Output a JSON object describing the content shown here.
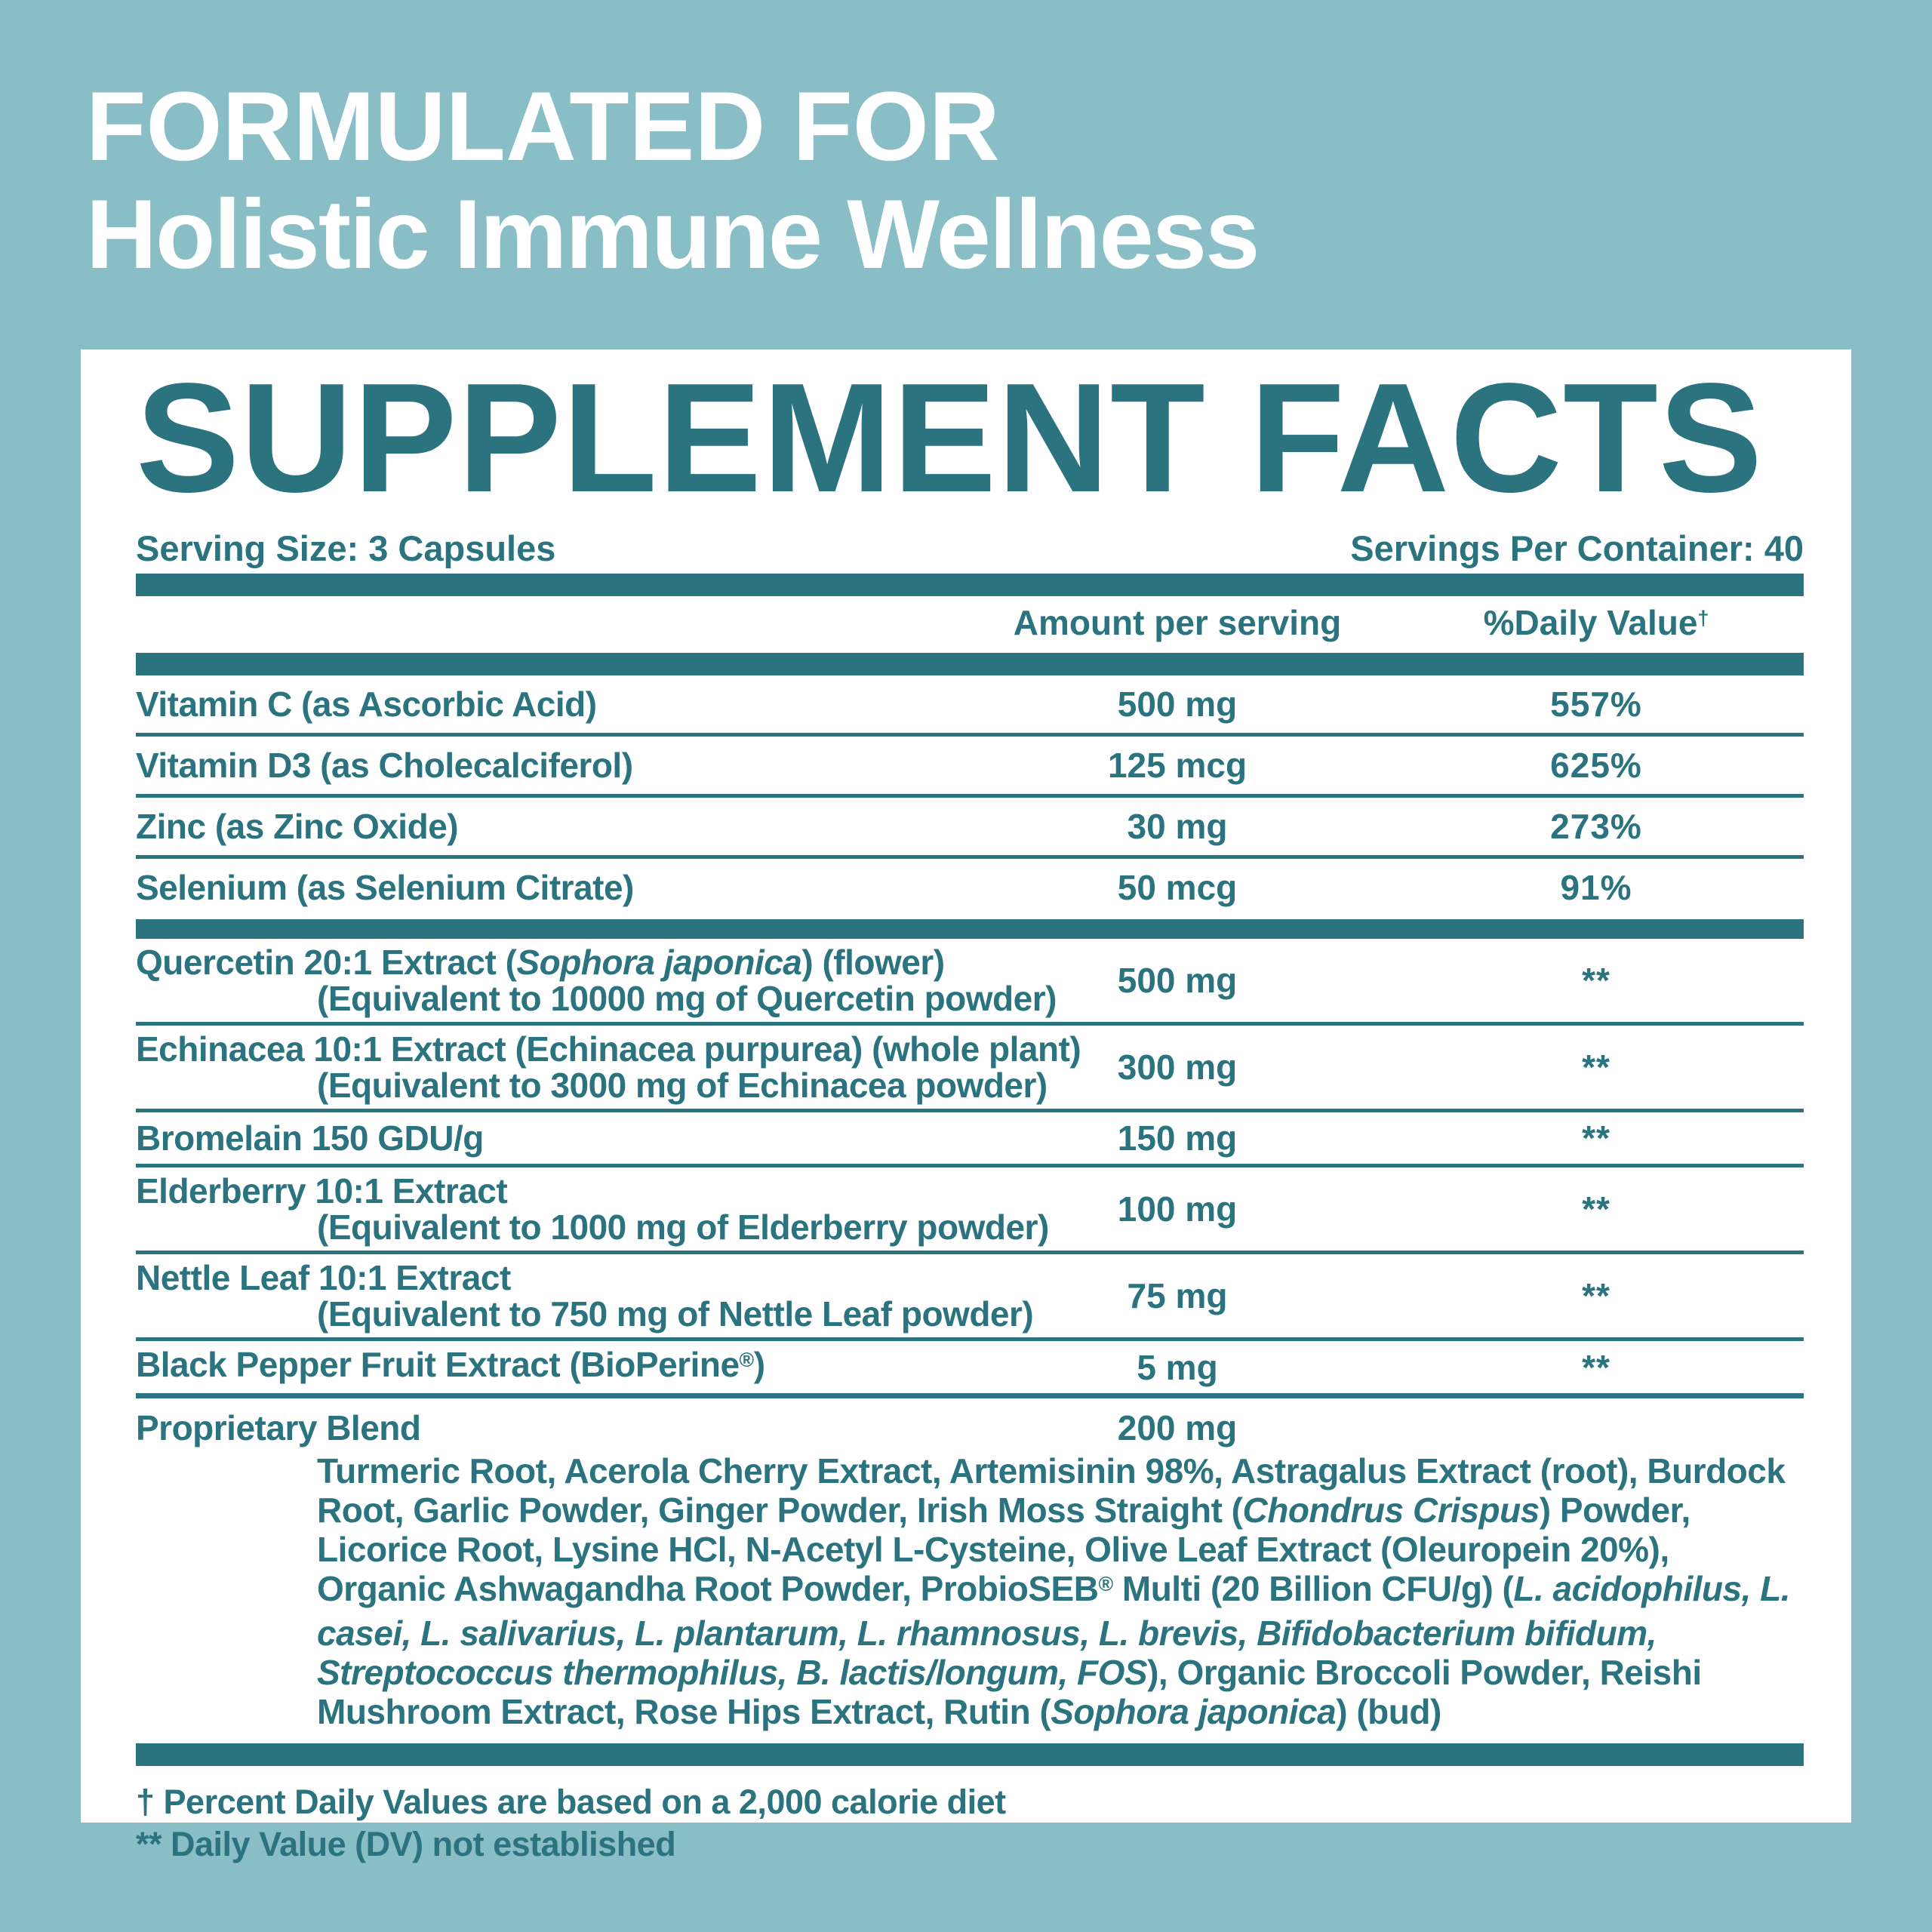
{
  "colors": {
    "bg": "#8abec7",
    "ink": "#2a737f",
    "card": "#ffffff"
  },
  "header": {
    "line1": "FORMULATED FOR",
    "line2": "Holistic Immune Wellness"
  },
  "panel": {
    "title": "SUPPLEMENT FACTS",
    "serving_size": "Serving Size: 3 Capsules",
    "servings_per_container": "Servings Per Container: 40",
    "columns": {
      "amount": "Amount per serving",
      "dv": [
        {
          "t": "%Daily Value"
        },
        {
          "t": "†",
          "s": true
        }
      ]
    },
    "rows": [
      {
        "section": "vitamins",
        "name": [
          {
            "t": "Vitamin C (as Ascorbic Acid)"
          }
        ],
        "amount": "500 mg",
        "dv": "557%"
      },
      {
        "section": "vitamins",
        "name": [
          {
            "t": "Vitamin D3 (as Cholecalciferol)"
          }
        ],
        "amount": "125 mcg",
        "dv": "625%"
      },
      {
        "section": "vitamins",
        "name": [
          {
            "t": "Zinc (as Zinc Oxide)"
          }
        ],
        "amount": "30 mg",
        "dv": "273%"
      },
      {
        "section": "vitamins",
        "name": [
          {
            "t": "Selenium (as Selenium Citrate)"
          }
        ],
        "amount": "50 mcg",
        "dv": "91%"
      },
      {
        "section": "botanicals",
        "name": [
          {
            "t": "Quercetin 20:1 Extract ("
          },
          {
            "t": "Sophora japonica",
            "i": true
          },
          {
            "t": ") (flower)"
          }
        ],
        "sub": [
          {
            "t": "(Equivalent to 10000 mg of Quercetin powder)"
          }
        ],
        "amount": "500 mg",
        "dv": "**"
      },
      {
        "section": "botanicals",
        "name": [
          {
            "t": "Echinacea 10:1 Extract (Echinacea purpurea) (whole plant)"
          }
        ],
        "sub": [
          {
            "t": "(Equivalent to 3000 mg of Echinacea powder)"
          }
        ],
        "amount": "300 mg",
        "dv": "**"
      },
      {
        "section": "botanicals",
        "name": [
          {
            "t": "Bromelain 150 GDU/g"
          }
        ],
        "amount": "150 mg",
        "dv": "**"
      },
      {
        "section": "botanicals",
        "name": [
          {
            "t": "Elderberry 10:1 Extract"
          }
        ],
        "sub": [
          {
            "t": "(Equivalent to 1000 mg of Elderberry powder)"
          }
        ],
        "amount": "100 mg",
        "dv": "**"
      },
      {
        "section": "botanicals",
        "name": [
          {
            "t": "Nettle Leaf 10:1 Extract"
          }
        ],
        "sub": [
          {
            "t": "(Equivalent to 750 mg of Nettle Leaf powder)"
          }
        ],
        "amount": "75 mg",
        "dv": "**"
      },
      {
        "section": "botanicals",
        "name": [
          {
            "t": "Black Pepper Fruit Extract (BioPerine"
          },
          {
            "t": "®",
            "s": true
          },
          {
            "t": ")"
          }
        ],
        "amount": "5 mg",
        "dv": "**"
      }
    ],
    "blend": {
      "name": "Proprietary Blend",
      "amount": "200 mg",
      "description": [
        {
          "t": "Turmeric Root, Acerola Cherry Extract, Artemisinin 98%, Astragalus Extract (root), Burdock Root, Garlic Powder, Ginger Powder, Irish Moss Straight ("
        },
        {
          "t": "Chondrus Crispus",
          "i": true
        },
        {
          "t": ") Powder, Licorice Root, Lysine HCl, N-Acetyl L-Cysteine, Olive Leaf Extract (Oleuropein 20%), Organic Ashwagandha Root Powder, ProbioSEB"
        },
        {
          "t": "®",
          "s": true
        },
        {
          "t": " Multi (20 Billion CFU/g)  ("
        },
        {
          "t": "L. acidophilus, L. casei, L. salivarius, L. plantarum, L. rhamnosus, L. brevis, Bifidobacterium bifidum, Streptococcus thermophilus, B. lactis/longum, FOS",
          "i": true
        },
        {
          "t": "), Organic Broccoli Powder, Reishi Mushroom Extract, Rose Hips Extract, Rutin ("
        },
        {
          "t": "Sophora japonica",
          "i": true
        },
        {
          "t": ") (bud)"
        }
      ]
    },
    "footnotes": [
      "† Percent Daily Values are based on a 2,000 calorie diet",
      "** Daily Value (DV) not established"
    ]
  }
}
